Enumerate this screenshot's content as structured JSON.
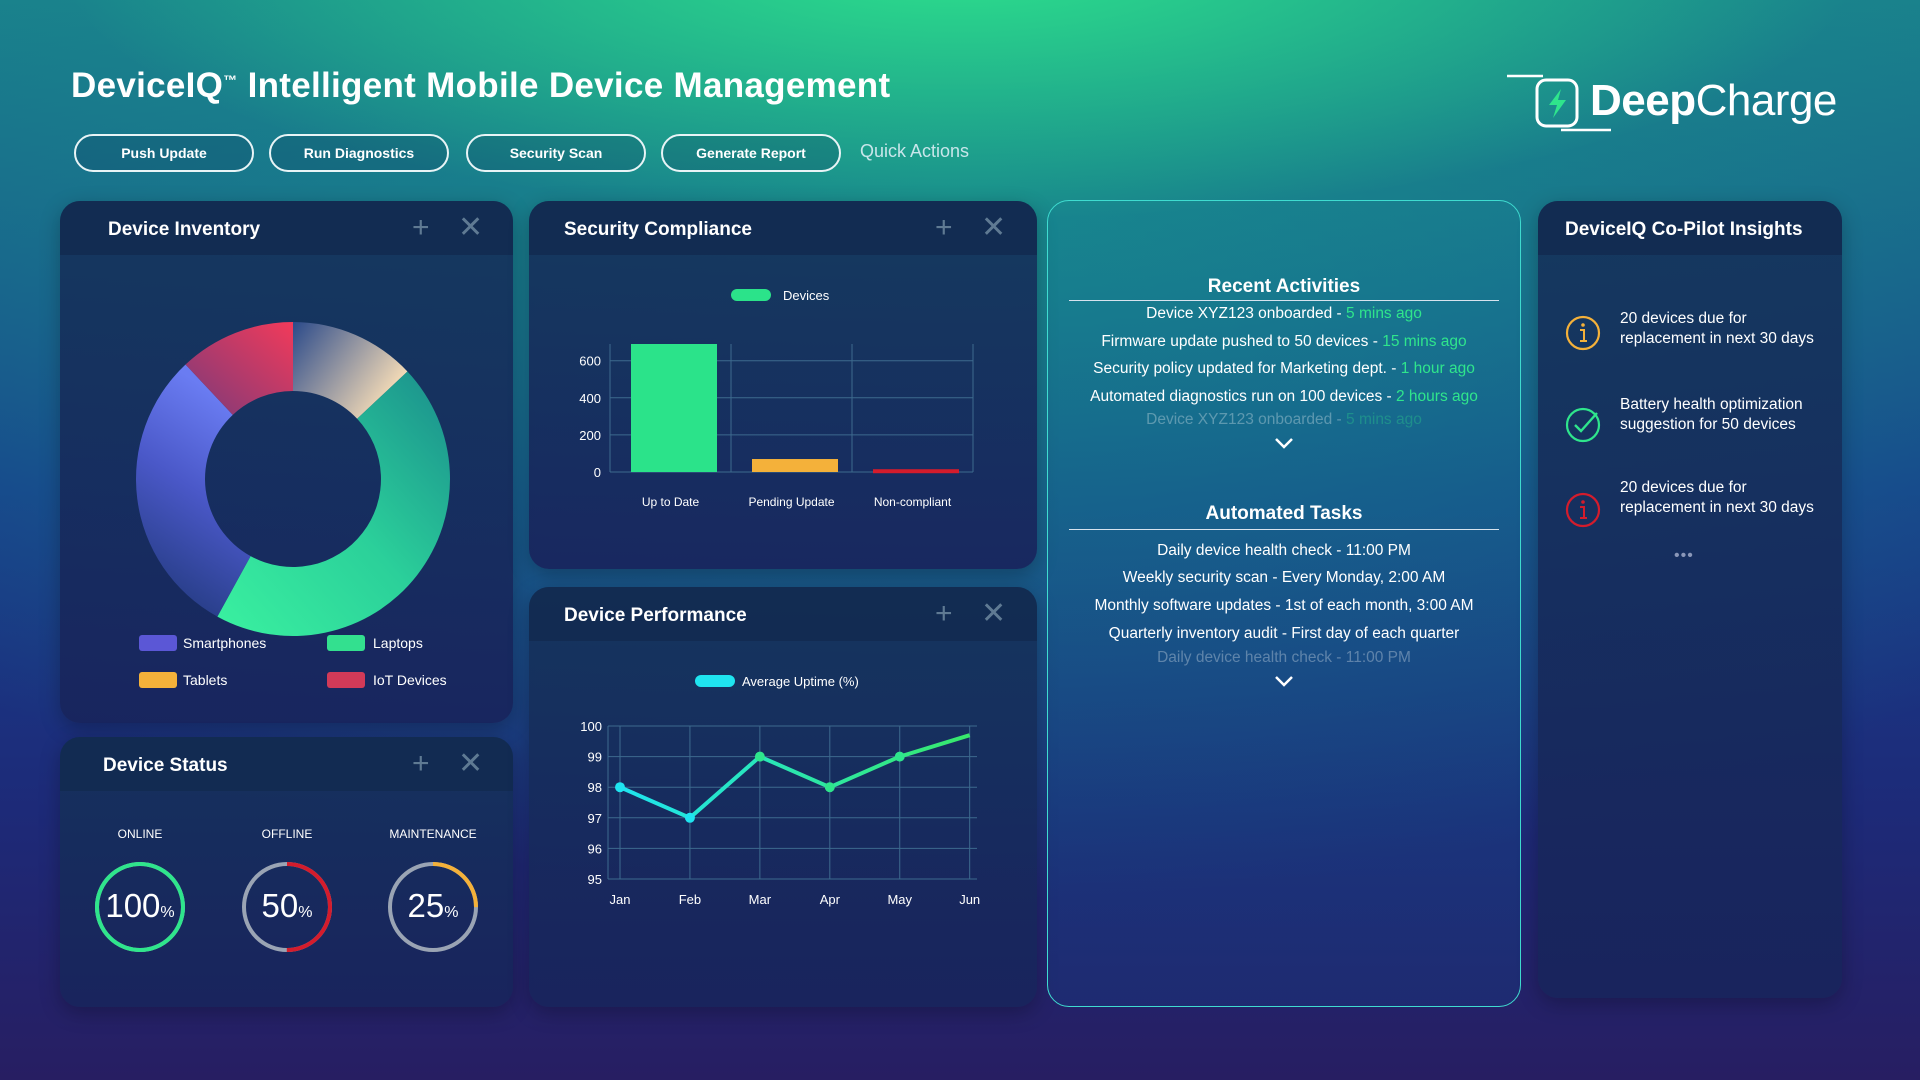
{
  "header": {
    "brand": "DeviceIQ",
    "trademark": "™",
    "subtitle": "Intelligent Mobile Device Management",
    "logo": {
      "bold": "Deep",
      "light": "Charge"
    }
  },
  "quick_actions": {
    "buttons": [
      "Push Update",
      "Run Diagnostics",
      "Security Scan",
      "Generate Report"
    ],
    "label": "Quick Actions"
  },
  "inventory": {
    "title": "Device Inventory",
    "legend": [
      {
        "label": "Smartphones",
        "color": "#5b57d6"
      },
      {
        "label": "Laptops",
        "color": "#33e08f"
      },
      {
        "label": "Tablets",
        "color": "#f4b13a"
      },
      {
        "label": "IoT Devices",
        "color": "#d23a58"
      }
    ]
  },
  "status": {
    "title": "Device Status",
    "items": [
      {
        "label": "ONLINE",
        "value": "100",
        "unit": "%",
        "percent": 100,
        "color": "#2fe58c"
      },
      {
        "label": "OFFLINE",
        "value": "50",
        "unit": "%",
        "percent": 50,
        "color": "#d41c2c"
      },
      {
        "label": "MAINTENANCE",
        "value": "25",
        "unit": "%",
        "percent": 25,
        "color": "#f4b13a"
      }
    ]
  },
  "compliance": {
    "title": "Security Compliance",
    "legend": "Devices"
  },
  "performance": {
    "title": "Device Performance",
    "legend": "Average Uptime (%)"
  },
  "activities": {
    "title": "Recent Activities",
    "items": [
      {
        "text": "Device XYZ123 onboarded - ",
        "time": "5 mins ago"
      },
      {
        "text": "Firmware update pushed to 50 devices - ",
        "time": "15 mins ago"
      },
      {
        "text": "Security policy updated for Marketing dept. - ",
        "time": "1 hour ago"
      },
      {
        "text": "Automated diagnostics run on 100 devices - ",
        "time": "2 hours ago"
      }
    ],
    "faded": {
      "text": "Device XYZ123 onboarded - ",
      "time": "5 mins ago"
    }
  },
  "tasks": {
    "title": "Automated Tasks",
    "items": [
      "Daily device health check - 11:00 PM",
      "Weekly security scan - Every Monday, 2:00 AM",
      "Monthly software updates - 1st of each month, 3:00 AM",
      "Quarterly inventory audit - First day of each quarter"
    ],
    "faded": "Daily device health check - 11:00 PM"
  },
  "insights": {
    "title": "DeviceIQ Co-Pilot Insights",
    "items": [
      {
        "text": "20 devices due for replacement in next 30 days",
        "icon": "info-icon",
        "color": "#f4b13a"
      },
      {
        "text": "Battery health optimization suggestion for 50 devices",
        "icon": "check-icon",
        "color": "#2fe58c"
      },
      {
        "text": "20 devices due for replacement in next 30 days",
        "icon": "alert-icon",
        "color": "#d41c2c"
      }
    ],
    "more": "•••"
  },
  "chart_data": [
    {
      "type": "pie",
      "variant": "donut",
      "categories": [
        "Smartphones",
        "Laptops",
        "Tablets",
        "IoT Devices"
      ],
      "values": [
        30,
        45,
        13,
        12
      ],
      "colors": [
        "#5b57d6",
        "#33e08f",
        "#f4b13a",
        "#d23a58"
      ],
      "legend_position": "bottom"
    },
    {
      "type": "bar",
      "categories": [
        "Up to Date",
        "Pending Update",
        "Non-compliant"
      ],
      "series": [
        {
          "name": "Devices",
          "values": [
            690,
            70,
            15
          ]
        }
      ],
      "bar_colors": [
        "#2be38a",
        "#f4b13a",
        "#d41c2c"
      ],
      "yticks": [
        0,
        200,
        400,
        600
      ],
      "ylim": [
        0,
        690
      ],
      "grid": true,
      "legend_position": "top"
    },
    {
      "type": "line",
      "categories": [
        "Jan",
        "Feb",
        "Mar",
        "Apr",
        "May",
        "Jun"
      ],
      "series": [
        {
          "name": "Average Uptime (%)",
          "values": [
            98,
            97,
            99,
            98,
            99,
            99.7
          ]
        }
      ],
      "yticks": [
        95,
        96,
        97,
        98,
        99,
        100
      ],
      "ylim": [
        95,
        100
      ],
      "grid": true,
      "legend_position": "top"
    }
  ]
}
